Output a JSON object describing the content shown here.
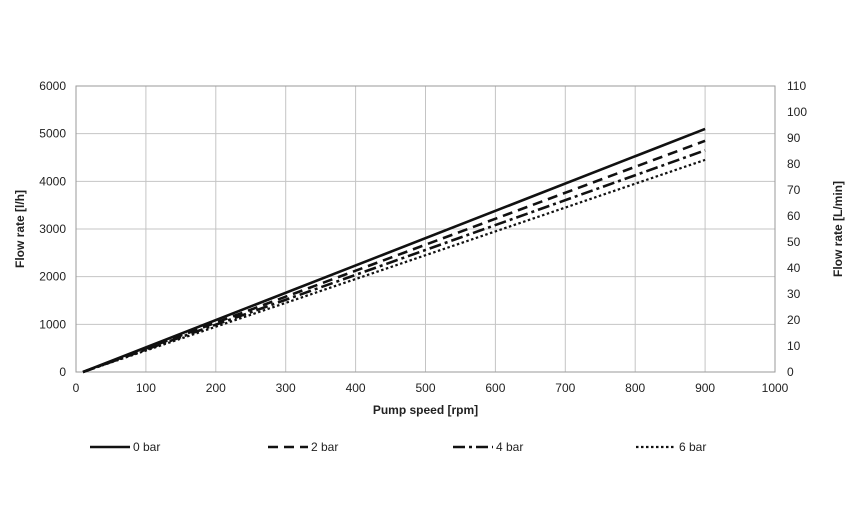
{
  "chart_data": {
    "type": "line",
    "title": "",
    "xlabel": "Pump speed [rpm]",
    "ylabel": "Flow rate [l/h]",
    "y2label": "Flow rate [L/min]",
    "xlim": [
      0,
      1000
    ],
    "ylim": [
      0,
      6000
    ],
    "y2lim": [
      0,
      110
    ],
    "xticks": [
      0,
      100,
      200,
      300,
      400,
      500,
      600,
      700,
      800,
      900,
      1000
    ],
    "yticks": [
      0,
      1000,
      2000,
      3000,
      4000,
      5000,
      6000
    ],
    "y2ticks": [
      0,
      10,
      20,
      30,
      40,
      50,
      60,
      70,
      80,
      90,
      100,
      110
    ],
    "grid": true,
    "legend_position": "bottom",
    "series": [
      {
        "name": "0 bar",
        "style": "solid",
        "x": [
          10,
          900
        ],
        "y": [
          0,
          5100
        ]
      },
      {
        "name": "2 bar",
        "style": "dashed",
        "x": [
          10,
          900
        ],
        "y": [
          0,
          4850
        ]
      },
      {
        "name": "4 bar",
        "style": "dashdot",
        "x": [
          10,
          900
        ],
        "y": [
          0,
          4650
        ]
      },
      {
        "name": "6 bar",
        "style": "dotted",
        "x": [
          10,
          900
        ],
        "y": [
          0,
          4450
        ]
      }
    ]
  }
}
